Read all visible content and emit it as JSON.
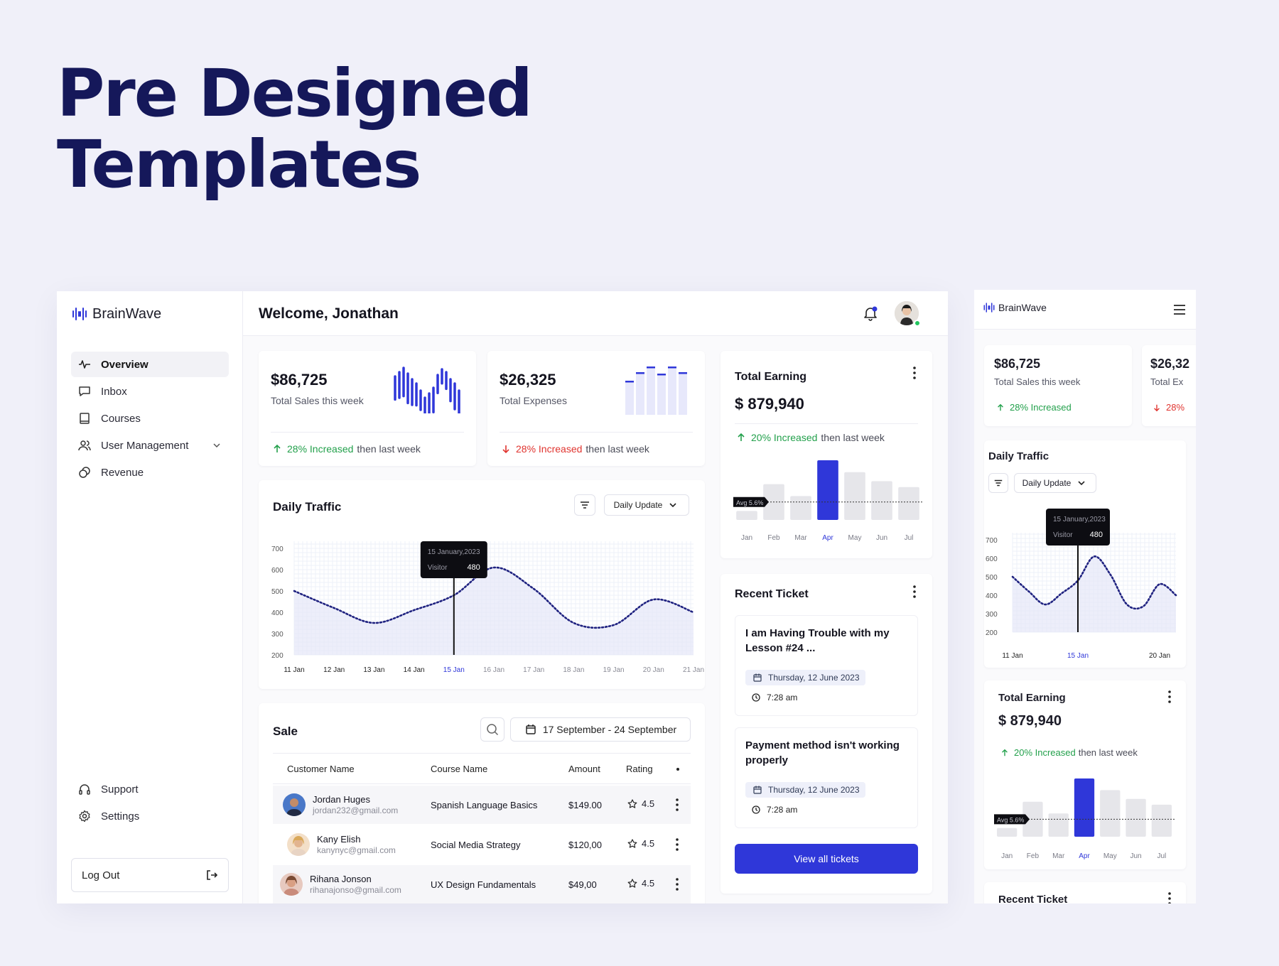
{
  "hero": {
    "line1": "Pre Designed",
    "line2": "Templates"
  },
  "brand": {
    "name": "BrainWave"
  },
  "header": {
    "welcome": "Welcome, Jonathan"
  },
  "sidebar": {
    "items": [
      {
        "label": "Overview"
      },
      {
        "label": "Inbox"
      },
      {
        "label": "Courses"
      },
      {
        "label": "User Management"
      },
      {
        "label": "Revenue"
      }
    ],
    "bottom": [
      {
        "label": "Support"
      },
      {
        "label": "Settings"
      }
    ],
    "logout": "Log Out"
  },
  "stats": [
    {
      "value": "$86,725",
      "label": "Total Sales this week",
      "change": "28% Increased",
      "suffix": "then last week",
      "trend": "up"
    },
    {
      "value": "$26,325",
      "label": "Total Expenses",
      "change": "28% Increased",
      "suffix": "then last week",
      "trend": "down"
    }
  ],
  "traffic": {
    "title": "Daily Traffic",
    "dropdown": "Daily Update",
    "tooltip_date": "15 January,2023",
    "tooltip_label": "Visitor",
    "tooltip_value": "480"
  },
  "chart_data": [
    {
      "type": "line",
      "title": "Daily Traffic",
      "x": [
        "11 Jan",
        "12 Jan",
        "13 Jan",
        "14 Jan",
        "15 Jan",
        "16 Jan",
        "17 Jan",
        "18 Jan",
        "19 Jan",
        "20 Jan",
        "21 Jan"
      ],
      "yticks": [
        "700",
        "600",
        "500",
        "400",
        "300",
        "200"
      ],
      "ylim": [
        200,
        700
      ],
      "series": [
        {
          "values": [
            500,
            420,
            350,
            410,
            480,
            610,
            510,
            350,
            340,
            460,
            400
          ]
        }
      ],
      "highlight_x": "15 Jan",
      "grid": true
    },
    {
      "type": "bar",
      "title": "Total Earning",
      "categories": [
        "Jan",
        "Feb",
        "Mar",
        "Apr",
        "May",
        "Jun",
        "Jul"
      ],
      "values": [
        15,
        60,
        40,
        100,
        80,
        65,
        55
      ],
      "highlight": "Apr",
      "avg_label": "Avg 5.6%"
    }
  ],
  "earning": {
    "title": "Total Earning",
    "value": "$ 879,940",
    "change": "20% Increased",
    "suffix": "then last week"
  },
  "tickets": {
    "title": "Recent Ticket",
    "items": [
      {
        "title": "I am Having Trouble with my Lesson #24 ...",
        "date": "Thursday, 12 June 2023",
        "time": "7:28 am"
      },
      {
        "title": "Payment method isn't working properly",
        "date": "Thursday, 12 June 2023",
        "time": "7:28 am"
      }
    ],
    "button": "View all tickets"
  },
  "sale": {
    "title": "Sale",
    "date_range": "17 September - 24 September",
    "columns": [
      "Customer Name",
      "Course Name",
      "Amount",
      "Rating"
    ],
    "rows": [
      {
        "name": "Jordan Huges",
        "email": "jordan232@gmail.com",
        "course": "Spanish Language Basics",
        "amount": "$149.00",
        "rating": "4.5"
      },
      {
        "name": "Kany Elish",
        "email": "kanynyc@gmail.com",
        "course": "Social Media Strategy",
        "amount": "$120,00",
        "rating": "4.5"
      },
      {
        "name": "Rihana Jonson",
        "email": "rihanajonso@gmail.com",
        "course": "UX Design Fundamentals",
        "amount": "$49,00",
        "rating": "4.5"
      }
    ]
  },
  "mobile": {
    "stat1": {
      "value": "$86,725",
      "label": "Total Sales this week",
      "change": "28% Increased"
    },
    "stat2": {
      "value": "$26,32",
      "label": "Total Ex",
      "change": "28%"
    },
    "traffic_x": [
      "11 Jan",
      "15 Jan",
      "20 Jan"
    ]
  },
  "colors": {
    "accent": "#2f37d9",
    "navy": "#15185a",
    "green": "#22a04b",
    "red": "#e0342f"
  }
}
